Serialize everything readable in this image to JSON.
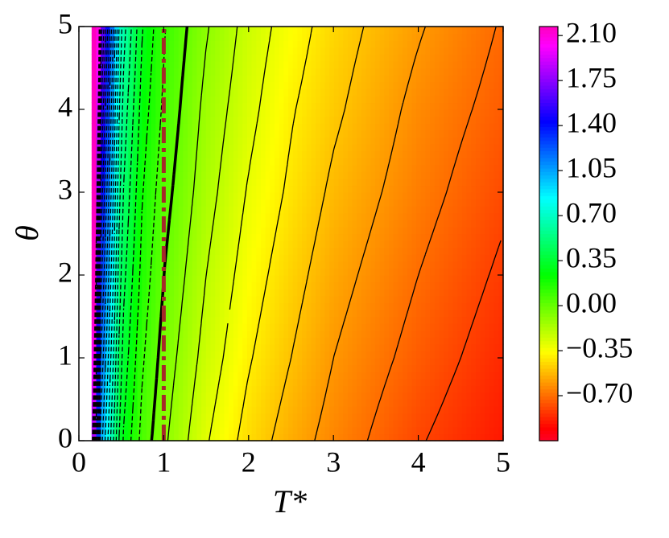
{
  "chart_data": {
    "type": "contour",
    "xlabel": "T*",
    "ylabel": "θ",
    "xlim": [
      0,
      5
    ],
    "ylim": [
      0,
      5
    ],
    "xticks": [
      0,
      1,
      2,
      3,
      4,
      5
    ],
    "yticks": [
      0,
      1,
      2,
      3,
      4,
      5
    ],
    "x": [
      0.15,
      0.25,
      0.5,
      0.75,
      1,
      1.5,
      2,
      2.5,
      3,
      4,
      5
    ],
    "y": [
      0,
      1,
      2,
      3,
      4,
      5
    ],
    "z": [
      [
        2.1,
        1.08,
        0.315,
        0.06,
        -0.08,
        -0.29,
        -0.44,
        -0.55,
        -0.64,
        -0.79,
        -0.9
      ],
      [
        2.34,
        1.22,
        0.39,
        0.11,
        -0.04,
        -0.24,
        -0.39,
        -0.5,
        -0.6,
        -0.74,
        -0.86
      ],
      [
        2.58,
        1.37,
        0.46,
        0.16,
        0.0,
        -0.2,
        -0.35,
        -0.46,
        -0.56,
        -0.7,
        -0.82
      ],
      [
        2.82,
        1.51,
        0.53,
        0.2,
        0.04,
        -0.16,
        -0.31,
        -0.42,
        -0.52,
        -0.66,
        -0.78
      ],
      [
        3.06,
        1.66,
        0.6,
        0.25,
        0.08,
        -0.13,
        -0.27,
        -0.39,
        -0.48,
        -0.63,
        -0.74
      ],
      [
        3.3,
        1.8,
        0.68,
        0.3,
        0.11,
        -0.09,
        -0.24,
        -0.35,
        -0.45,
        -0.59,
        -0.71
      ]
    ],
    "levels": [
      -0.8,
      -0.7,
      -0.6,
      -0.5,
      -0.4,
      -0.3,
      -0.2,
      -0.1,
      0,
      0.1,
      0.2,
      0.3,
      0.4,
      0.5,
      0.6,
      0.7,
      0.8,
      0.9,
      1.0,
      1.1,
      1.2,
      1.3,
      1.4,
      1.5,
      1.6,
      1.7,
      1.8,
      1.9,
      2.0
    ],
    "colormap": "gist_rainbow",
    "clim": [
      -1.05,
      2.17
    ],
    "cticks": [
      {
        "value": 2.1,
        "label": "2.10"
      },
      {
        "value": 1.75,
        "label": "1.75"
      },
      {
        "value": 1.4,
        "label": "1.40"
      },
      {
        "value": 1.05,
        "label": "1.05"
      },
      {
        "value": 0.7,
        "label": "0.70"
      },
      {
        "value": 0.35,
        "label": "0.35"
      },
      {
        "value": 0,
        "label": "0.00"
      },
      {
        "value": -0.35,
        "label": "−0.35"
      },
      {
        "value": -0.7,
        "label": "−0.70"
      }
    ],
    "reference_line": {
      "x": 1,
      "color": "#a52a2a"
    }
  }
}
